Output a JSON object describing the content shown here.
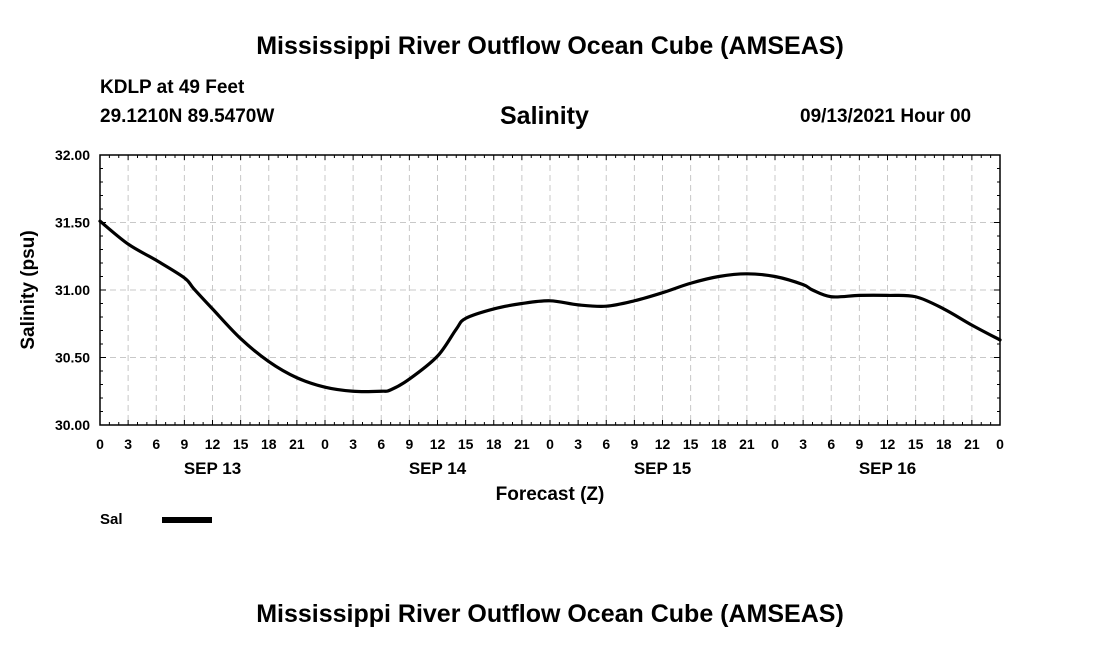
{
  "header": {
    "title": "Mississippi River Outflow Ocean Cube (AMSEAS)",
    "station": "KDLP at 49 Feet",
    "coords": "29.1210N  89.5470W",
    "date": "09/13/2021 Hour 00"
  },
  "footer": {
    "title": "Mississippi River Outflow Ocean Cube (AMSEAS)"
  },
  "chart_data": {
    "type": "line",
    "title": "Salinity",
    "xlabel": "Forecast (Z)",
    "ylabel": "Salinity (psu)",
    "ylim": [
      30.0,
      32.0
    ],
    "yticks": [
      "30.00",
      "30.50",
      "31.00",
      "31.50",
      "32.00"
    ],
    "xlim": [
      0,
      96
    ],
    "grid": true,
    "xtick_labels": [
      "0",
      "3",
      "6",
      "9",
      "12",
      "15",
      "18",
      "21",
      "0",
      "3",
      "6",
      "9",
      "12",
      "15",
      "18",
      "21",
      "0",
      "3",
      "6",
      "9",
      "12",
      "15",
      "18",
      "21",
      "0",
      "3",
      "6",
      "9",
      "12",
      "15",
      "18",
      "21",
      "0"
    ],
    "day_labels": [
      {
        "label": "SEP 13",
        "hour": 12
      },
      {
        "label": "SEP 14",
        "hour": 36
      },
      {
        "label": "SEP 15",
        "hour": 60
      },
      {
        "label": "SEP 16",
        "hour": 84
      }
    ],
    "series": [
      {
        "name": "Sal",
        "color": "#000000",
        "x": [
          0,
          3,
          6,
          9,
          10,
          12,
          15,
          18,
          21,
          24,
          27,
          30,
          31,
          33,
          36,
          38,
          39,
          42,
          45,
          48,
          51,
          54,
          57,
          60,
          63,
          66,
          69,
          72,
          75,
          76,
          78,
          81,
          84,
          87,
          90,
          93,
          96
        ],
        "y": [
          31.51,
          31.34,
          31.22,
          31.09,
          31.01,
          30.86,
          30.64,
          30.47,
          30.35,
          30.28,
          30.25,
          30.25,
          30.26,
          30.34,
          30.51,
          30.71,
          30.79,
          30.86,
          30.9,
          30.92,
          30.89,
          30.88,
          30.92,
          30.98,
          31.05,
          31.1,
          31.12,
          31.1,
          31.04,
          31.0,
          30.95,
          30.96,
          30.96,
          30.95,
          30.86,
          30.74,
          30.63
        ]
      }
    ],
    "legend": {
      "position": "bottom-left",
      "label": "Sal"
    }
  }
}
